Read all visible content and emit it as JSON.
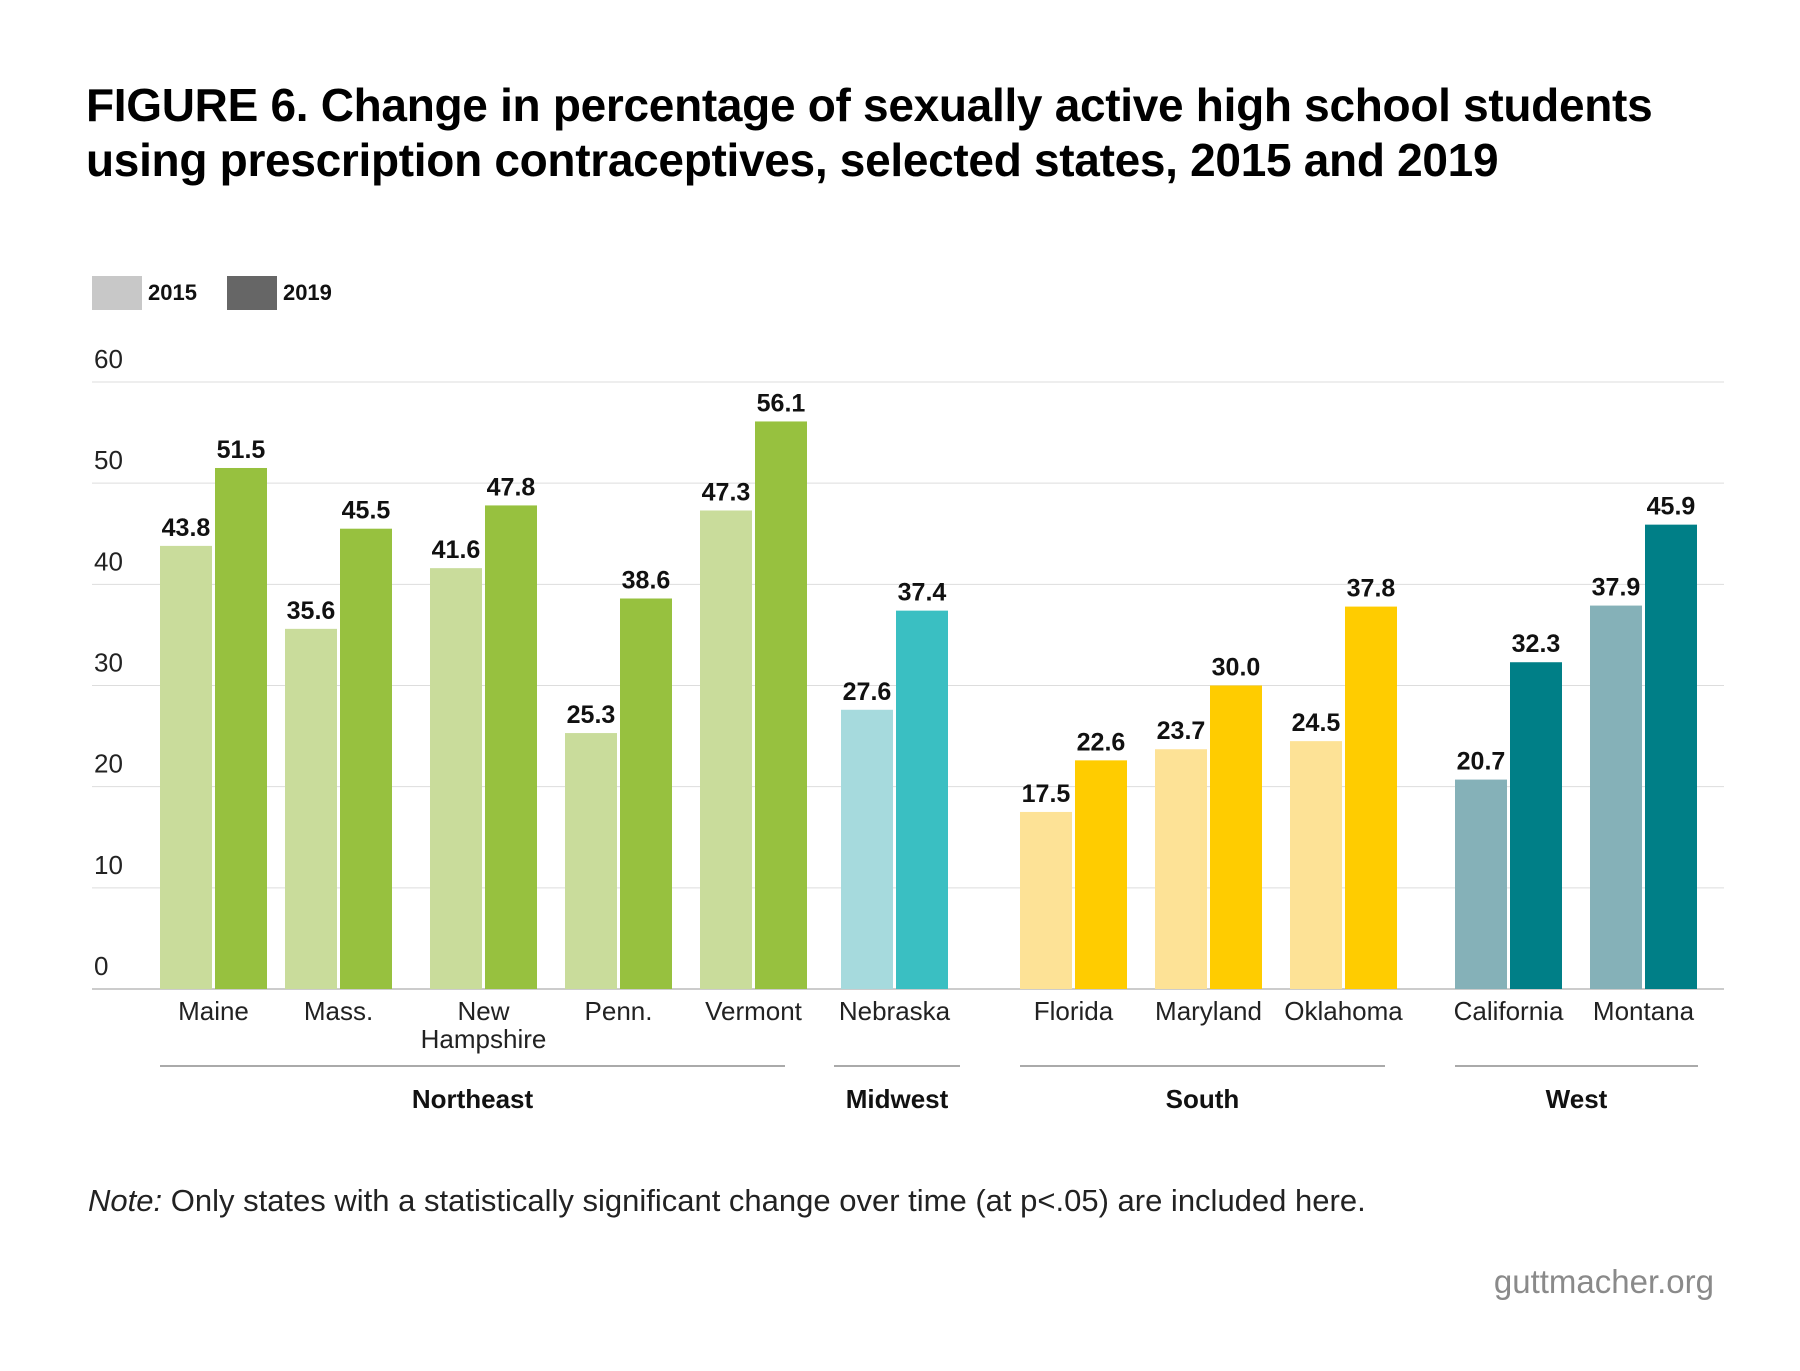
{
  "title": "FIGURE 6. Change in percentage of sexually active high school students using prescription contraceptives, selected states, 2015 and 2019",
  "legend": {
    "y2015": "2015",
    "y2019": "2019",
    "y2015_color": "#c8c8c8",
    "y2019_color": "#666666"
  },
  "note": {
    "prefix": "Note:",
    "text": " Only states with a statistically significant change over time (at p<.05) are included here."
  },
  "source": "guttmacher.org",
  "chart_data": {
    "type": "bar",
    "ylim": [
      0,
      60
    ],
    "yticks": [
      0,
      10,
      20,
      30,
      40,
      50,
      60
    ],
    "grid": true,
    "series": [
      {
        "name": "2015"
      },
      {
        "name": "2019"
      }
    ],
    "regions": [
      {
        "name": "Northeast",
        "color_2015": "#c9dc9b",
        "color_2019": "#97c13f",
        "states": [
          {
            "label": "Maine",
            "v2015": 43.8,
            "v2019": 51.5
          },
          {
            "label": "Mass.",
            "v2015": 35.6,
            "v2019": 45.5
          },
          {
            "label": "New Hampshire",
            "v2015": 41.6,
            "v2019": 47.8
          },
          {
            "label": "Penn.",
            "v2015": 25.3,
            "v2019": 38.6
          },
          {
            "label": "Vermont",
            "v2015": 47.3,
            "v2019": 56.1
          }
        ]
      },
      {
        "name": "Midwest",
        "color_2015": "#a6dadd",
        "color_2019": "#3abfc2",
        "states": [
          {
            "label": "Nebraska",
            "v2015": 27.6,
            "v2019": 37.4
          }
        ]
      },
      {
        "name": "South",
        "color_2015": "#fde296",
        "color_2019": "#ffcc00",
        "states": [
          {
            "label": "Florida",
            "v2015": 17.5,
            "v2019": 22.6
          },
          {
            "label": "Maryland",
            "v2015": 23.7,
            "v2019": 30.0
          },
          {
            "label": "Oklahoma",
            "v2015": 24.5,
            "v2019": 37.8
          }
        ]
      },
      {
        "name": "West",
        "color_2015": "#85b1b8",
        "color_2019": "#007f87",
        "states": [
          {
            "label": "California",
            "v2015": 20.7,
            "v2019": 32.3
          },
          {
            "label": "Montana",
            "v2015": 37.9,
            "v2019": 45.9
          }
        ]
      }
    ]
  }
}
